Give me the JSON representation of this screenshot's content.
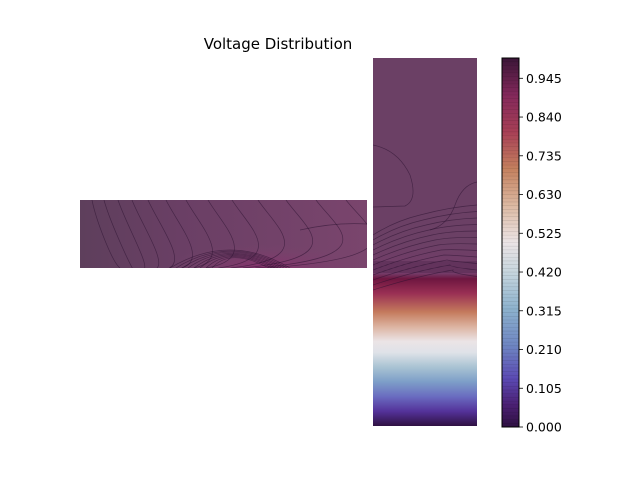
{
  "chart_data": {
    "type": "heatmap",
    "title": "Voltage Distribution",
    "xlabel": "",
    "ylabel": "",
    "colorbar": {
      "colormap": "twilight_shifted",
      "range": [
        0.0,
        1.0
      ],
      "ticks": [
        0.0,
        0.105,
        0.21,
        0.315,
        0.42,
        0.525,
        0.63,
        0.735,
        0.84,
        0.945
      ],
      "tick_labels": [
        "0.000",
        "0.105",
        "0.210",
        "0.315",
        "0.420",
        "0.525",
        "0.630",
        "0.735",
        "0.840",
        "0.945"
      ]
    },
    "regions": [
      {
        "name": "horizontal-strip",
        "value_range": [
          0.94,
          0.99
        ]
      },
      {
        "name": "vertical-strip",
        "value_range": [
          0.0,
          0.99
        ]
      }
    ],
    "grid": false,
    "legend": "colorbar-right"
  },
  "colors": {
    "high": "#6b4065",
    "mid": "#e6e0e4",
    "low": "#2f1142"
  }
}
